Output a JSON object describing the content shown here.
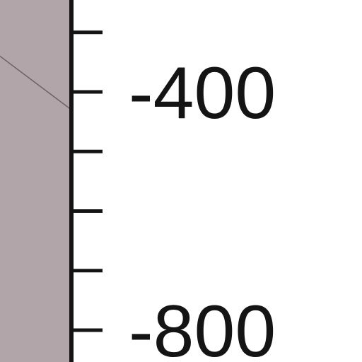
{
  "chart_data": {
    "type": "line",
    "title": "",
    "xlabel": "",
    "ylabel": "",
    "y_axis": {
      "side": "right",
      "range_visible": [
        -900,
        -300
      ],
      "minor_step": 100,
      "tick_values": [
        -300,
        -400,
        -500,
        -600,
        -700,
        -800
      ],
      "tick_labels": [
        {
          "value": -400,
          "text": "-400"
        },
        {
          "value": -800,
          "text": "-800"
        }
      ]
    },
    "series": [
      {
        "values_visible_segment": [
          -340,
          -430
        ]
      }
    ],
    "grid": false,
    "legend": "none"
  },
  "colors": {
    "plot_background": "#b2a5aa",
    "axis": "#141414",
    "line": "#6e5f68",
    "page_background": "#ffffff"
  }
}
